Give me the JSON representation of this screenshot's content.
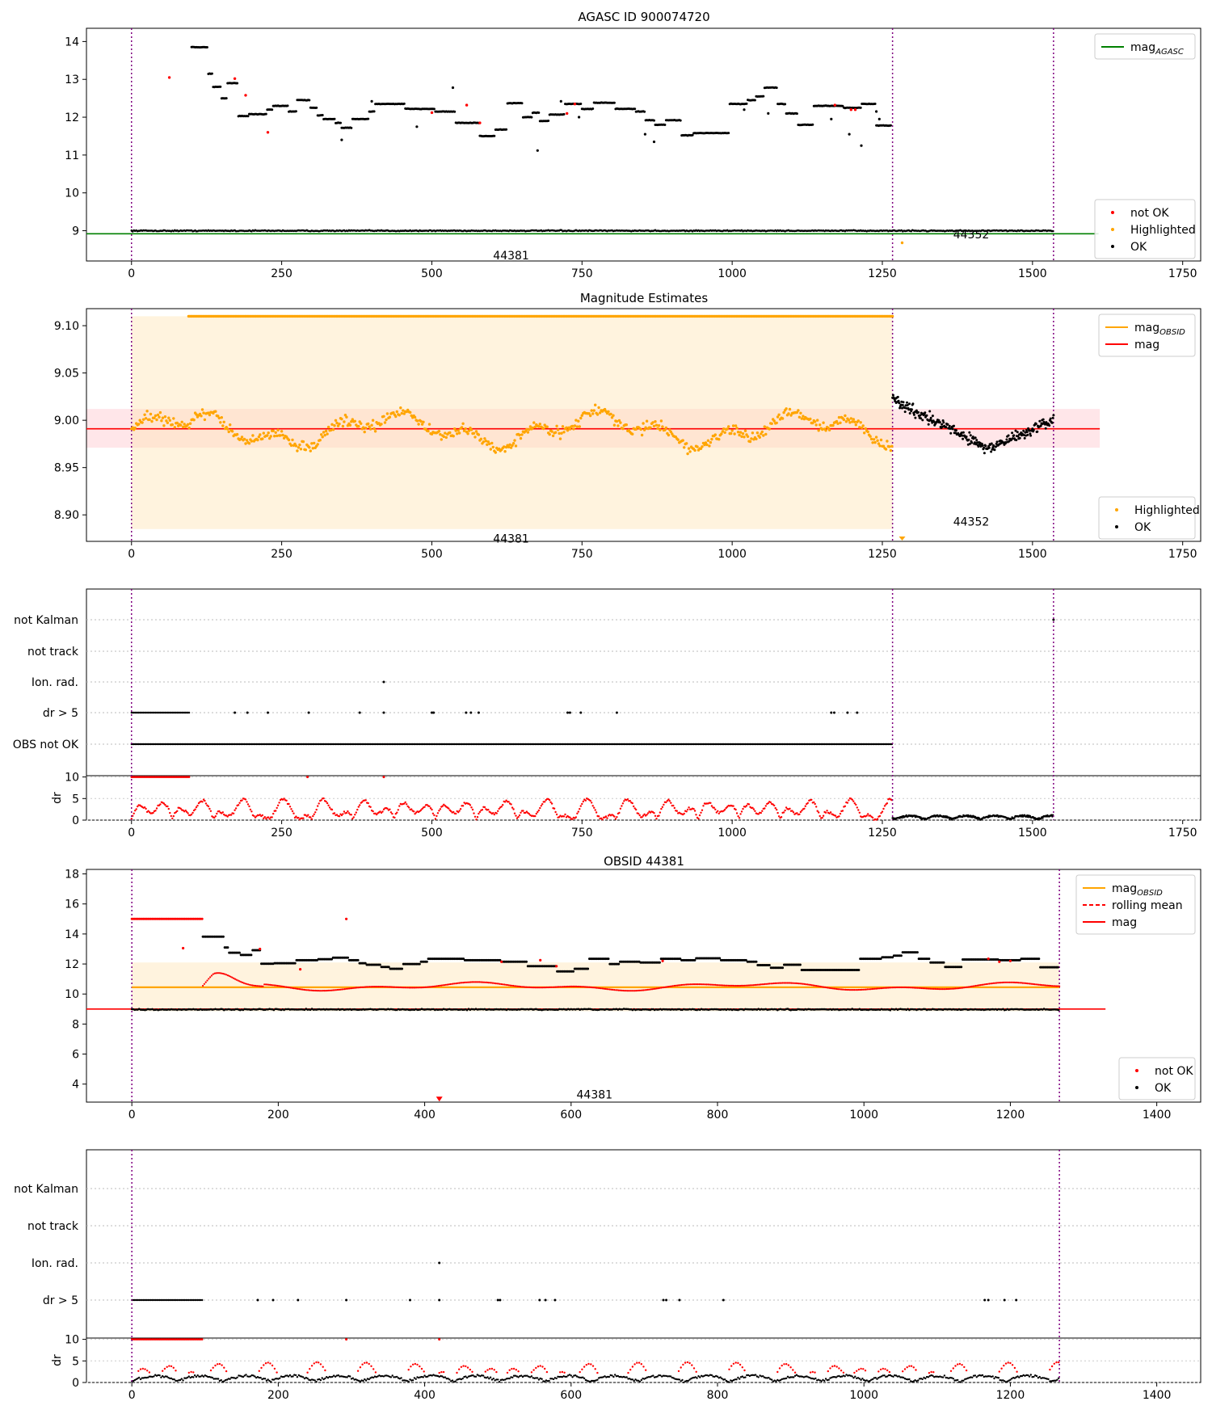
{
  "chart_data": [
    {
      "type": "scatter",
      "title": "AGASC ID 900074720",
      "xlim": [
        -75,
        1780
      ],
      "ylim": [
        8.2,
        14.35
      ],
      "xticks": [
        0,
        250,
        500,
        750,
        1000,
        1250,
        1500,
        1750
      ],
      "yticks": [
        9,
        10,
        11,
        12,
        13,
        14
      ],
      "legend_top": {
        "position": "upper right",
        "entries": [
          {
            "label": "mag",
            "sub": "AGASC",
            "color": "#008000"
          }
        ]
      },
      "legend_bottom": {
        "position": "lower right",
        "entries": [
          {
            "label": "not OK",
            "color": "#ff0000"
          },
          {
            "label": "Highlighted",
            "color": "#ffa500"
          },
          {
            "label": "OK",
            "color": "#000000"
          }
        ]
      },
      "hline": {
        "value": 8.92,
        "color": "#008000",
        "x_range": [
          -75,
          1610
        ]
      },
      "obsid_boundaries": [
        0,
        1267,
        1535
      ],
      "obsid_labels": [
        {
          "text": "44381",
          "x": 632,
          "y": 8.35
        },
        {
          "text": "44352",
          "x": 1398,
          "y": 8.9
        }
      ],
      "series": [
        {
          "name": "OK",
          "kind": "ok",
          "color": "#000000",
          "n_estimated": 1535,
          "baseline": 9.0,
          "noise": 0.02,
          "x_range": [
            0,
            1535
          ]
        },
        {
          "name": "OK",
          "kind": "ok_upper",
          "color": "#000000",
          "x_range": [
            100,
            1265
          ],
          "steps": [
            [
              100,
              13.85
            ],
            [
              127,
              13.15
            ],
            [
              135,
              12.8
            ],
            [
              150,
              12.5
            ],
            [
              160,
              12.9
            ],
            [
              177,
              12.03
            ],
            [
              195,
              12.08
            ],
            [
              225,
              12.2
            ],
            [
              235,
              12.3
            ],
            [
              262,
              12.15
            ],
            [
              275,
              12.45
            ],
            [
              297,
              12.25
            ],
            [
              310,
              12.05
            ],
            [
              320,
              11.95
            ],
            [
              340,
              11.85
            ],
            [
              350,
              11.72
            ],
            [
              368,
              11.95
            ],
            [
              395,
              12.15
            ],
            [
              405,
              12.35
            ],
            [
              455,
              12.22
            ],
            [
              505,
              12.15
            ],
            [
              540,
              11.85
            ],
            [
              580,
              11.5
            ],
            [
              605,
              11.67
            ],
            [
              625,
              12.37
            ],
            [
              652,
              12.0
            ],
            [
              667,
              12.12
            ],
            [
              680,
              11.9
            ],
            [
              695,
              12.07
            ],
            [
              722,
              12.35
            ],
            [
              750,
              12.22
            ],
            [
              770,
              12.38
            ],
            [
              805,
              12.22
            ],
            [
              840,
              12.15
            ],
            [
              855,
              11.92
            ],
            [
              872,
              11.8
            ],
            [
              890,
              11.92
            ],
            [
              915,
              11.52
            ],
            [
              935,
              11.58
            ],
            [
              995,
              12.35
            ],
            [
              1025,
              12.45
            ],
            [
              1040,
              12.55
            ],
            [
              1053,
              12.78
            ],
            [
              1075,
              12.35
            ],
            [
              1090,
              12.1
            ],
            [
              1110,
              11.8
            ],
            [
              1135,
              12.3
            ],
            [
              1185,
              12.25
            ],
            [
              1215,
              12.35
            ],
            [
              1240,
              11.78
            ]
          ]
        },
        {
          "name": "not OK",
          "kind": "notok",
          "color": "#ff0000",
          "x": [
            63,
            172,
            190,
            227,
            500,
            558,
            580,
            725,
            738,
            1171,
            1198,
            1205
          ],
          "y": [
            13.05,
            13.02,
            12.58,
            11.6,
            12.12,
            12.32,
            11.85,
            12.1,
            12.35,
            12.32,
            12.2,
            12.2
          ]
        },
        {
          "name": "Highlighted",
          "kind": "highlight",
          "color": "#ffa500",
          "x": [
            1283
          ],
          "y": [
            8.68
          ]
        }
      ]
    },
    {
      "type": "scatter",
      "title": "Magnitude Estimates",
      "xlim": [
        -75,
        1780
      ],
      "ylim": [
        8.872,
        9.118
      ],
      "xticks": [
        0,
        250,
        500,
        750,
        1000,
        1250,
        1500,
        1750
      ],
      "yticks": [
        8.9,
        8.95,
        9.0,
        9.05,
        9.1
      ],
      "ytick_labels": [
        "8.90",
        "8.95",
        "9.00",
        "9.05",
        "9.10"
      ],
      "legend_top": {
        "position": "upper right",
        "entries": [
          {
            "label": "mag",
            "sub": "OBSID",
            "color": "#ffa500"
          },
          {
            "label": "mag",
            "color": "#ff0000"
          }
        ]
      },
      "legend_bottom": {
        "position": "lower right",
        "entries": [
          {
            "label": "Highlighted",
            "color": "#ffa500"
          },
          {
            "label": "OK",
            "color": "#000000"
          }
        ]
      },
      "hline": {
        "value": 8.991,
        "color": "#ff0000",
        "x_range": [
          -75,
          1612
        ]
      },
      "bands": [
        {
          "y": [
            8.971,
            9.012
          ],
          "x": [
            -75,
            1612
          ],
          "color": "#ffb6c1",
          "opacity": 0.35
        },
        {
          "y": [
            8.885,
            9.11
          ],
          "x": [
            0,
            1267
          ],
          "color": "#ffe4b5",
          "opacity": 0.45
        }
      ],
      "obsid_boundaries": [
        0,
        1267,
        1535
      ],
      "obsid_labels": [
        {
          "text": "44381",
          "x": 632,
          "y": 8.875
        },
        {
          "text": "44352",
          "x": 1398,
          "y": 8.893
        }
      ],
      "series": [
        {
          "name": "Highlighted",
          "kind": "highlight",
          "color": "#ffa500",
          "x_range": [
            0,
            1267
          ],
          "center": 8.99,
          "spread": 0.028
        },
        {
          "name": "OK",
          "kind": "ok",
          "color": "#000000",
          "x_range": [
            1267,
            1535
          ],
          "start": 9.022,
          "mid": 8.97,
          "end": 9.0,
          "spread": 0.018
        },
        {
          "name": "Highlighted",
          "kind": "ceiling",
          "color": "#ffa500",
          "y": 9.11,
          "x_range": [
            95,
            1267
          ]
        }
      ]
    },
    {
      "type": "scatter",
      "title": "",
      "xlim": [
        -75,
        1780
      ],
      "xticks": [
        0,
        250,
        500,
        750,
        1000,
        1250,
        1500,
        1750
      ],
      "flag_labels": [
        "not Kalman",
        "not track",
        "Ion. rad.",
        "dr > 5",
        "OBS not OK"
      ],
      "obsid_boundaries": [
        0,
        1267,
        1535
      ],
      "flags": {
        "not Kalman": [
          1535
        ],
        "not track": [],
        "Ion. rad.": [
          420
        ],
        "dr > 5": {
          "range": [
            0,
            97
          ],
          "points": [
            172,
            193,
            227,
            295,
            380,
            420,
            500,
            503,
            557,
            565,
            578,
            726,
            730,
            748,
            808,
            1165,
            1170,
            1192,
            1208
          ]
        },
        "OBS not OK": {
          "range": [
            0,
            1267
          ]
        }
      },
      "dr": {
        "ylabel": "dr",
        "ylim": [
          0,
          10
        ],
        "yticks": [
          0,
          5,
          10
        ],
        "cap_points": [
          293,
          420
        ],
        "ok_range": [
          1267,
          1535
        ],
        "notok_range": [
          0,
          1267
        ]
      }
    },
    {
      "type": "scatter",
      "title": "OBSID 44381",
      "xlim": [
        -62,
        1460
      ],
      "ylim": [
        2.8,
        18.3
      ],
      "xticks": [
        0,
        200,
        400,
        600,
        800,
        1000,
        1200,
        1400
      ],
      "yticks": [
        4,
        6,
        8,
        10,
        12,
        14,
        16,
        18
      ],
      "legend_top": {
        "position": "upper right",
        "entries": [
          {
            "label": "mag",
            "sub": "OBSID",
            "color": "#ffa500",
            "style": "solid"
          },
          {
            "label": "rolling mean",
            "color": "#ff0000",
            "style": "dashed"
          },
          {
            "label": "mag",
            "color": "#ff0000",
            "style": "solid"
          }
        ]
      },
      "legend_bottom": {
        "position": "lower right",
        "entries": [
          {
            "label": "not OK",
            "color": "#ff0000"
          },
          {
            "label": "OK",
            "color": "#000000"
          }
        ]
      },
      "hline": {
        "value": 9.0,
        "color": "#ff0000",
        "x_range": [
          -62,
          1330
        ]
      },
      "mag_obsid": {
        "value": 10.45,
        "color": "#ffa500",
        "x_range": [
          0,
          1267
        ]
      },
      "bands": [
        {
          "y": [
            8.85,
            12.1
          ],
          "x": [
            0,
            1267
          ],
          "color": "#ffe4b5",
          "opacity": 0.45
        }
      ],
      "obsid_boundaries": [
        0,
        1267
      ],
      "obsid_labels": [
        {
          "text": "44381",
          "x": 632,
          "y": 3.3
        }
      ],
      "series": [
        {
          "name": "not OK",
          "kind": "cap",
          "color": "#ff0000",
          "x_range": [
            0,
            97
          ],
          "y": 15.0
        },
        {
          "name": "OK",
          "kind": "ok_upper",
          "color": "#000000",
          "x_range": [
            97,
            1265
          ],
          "steps": [
            [
              97,
              13.82
            ],
            [
              127,
              13.1
            ],
            [
              133,
              12.75
            ],
            [
              148,
              12.6
            ],
            [
              165,
              12.92
            ],
            [
              177,
              12.02
            ],
            [
              195,
              12.05
            ],
            [
              225,
              12.25
            ],
            [
              255,
              12.32
            ],
            [
              275,
              12.42
            ],
            [
              297,
              12.25
            ],
            [
              310,
              12.05
            ],
            [
              320,
              11.95
            ],
            [
              340,
              11.8
            ],
            [
              352,
              11.68
            ],
            [
              370,
              12.0
            ],
            [
              395,
              12.15
            ],
            [
              405,
              12.35
            ],
            [
              455,
              12.25
            ],
            [
              505,
              12.15
            ],
            [
              540,
              11.85
            ],
            [
              580,
              11.5
            ],
            [
              605,
              11.68
            ],
            [
              625,
              12.35
            ],
            [
              652,
              12.0
            ],
            [
              667,
              12.15
            ],
            [
              695,
              12.1
            ],
            [
              722,
              12.35
            ],
            [
              750,
              12.25
            ],
            [
              770,
              12.38
            ],
            [
              805,
              12.25
            ],
            [
              840,
              12.15
            ],
            [
              855,
              11.92
            ],
            [
              872,
              11.75
            ],
            [
              890,
              11.95
            ],
            [
              915,
              11.6
            ],
            [
              995,
              12.35
            ],
            [
              1025,
              12.45
            ],
            [
              1040,
              12.55
            ],
            [
              1053,
              12.78
            ],
            [
              1075,
              12.35
            ],
            [
              1090,
              12.1
            ],
            [
              1110,
              11.8
            ],
            [
              1135,
              12.3
            ],
            [
              1185,
              12.25
            ],
            [
              1215,
              12.35
            ],
            [
              1240,
              11.78
            ]
          ]
        },
        {
          "name": "OK",
          "kind": "ok",
          "color": "#000000",
          "x_range": [
            0,
            1267
          ],
          "baseline": 8.97,
          "noise": 0.05
        },
        {
          "name": "not OK",
          "kind": "notok",
          "color": "#ff0000",
          "x": [
            70,
            175,
            230,
            293,
            505,
            558,
            580,
            725,
            1170,
            1185,
            1200
          ],
          "y": [
            13.05,
            13.0,
            11.65,
            15.0,
            12.15,
            12.25,
            11.85,
            12.2,
            12.35,
            12.15,
            12.2
          ]
        },
        {
          "name": "rolling mean",
          "kind": "rolling",
          "color": "#ff0000",
          "x_range": [
            97,
            1267
          ]
        },
        {
          "name": "not OK",
          "kind": "marker",
          "color": "#ff0000",
          "x": [
            420
          ],
          "y": [
            2.95
          ]
        }
      ]
    },
    {
      "type": "scatter",
      "title": "",
      "xlim": [
        -62,
        1460
      ],
      "xticks": [
        0,
        200,
        400,
        600,
        800,
        1000,
        1200,
        1400
      ],
      "flag_labels": [
        "not Kalman",
        "not track",
        "Ion. rad.",
        "dr > 5"
      ],
      "obsid_boundaries": [
        0,
        1267
      ],
      "flags": {
        "not Kalman": [],
        "not track": [],
        "Ion. rad.": [
          420
        ],
        "dr > 5": {
          "range": [
            0,
            97
          ],
          "points": [
            172,
            193,
            227,
            293,
            380,
            420,
            500,
            503,
            557,
            565,
            578,
            726,
            730,
            748,
            808,
            1165,
            1170,
            1192,
            1208
          ]
        }
      },
      "dr": {
        "ylabel": "dr",
        "ylim": [
          0,
          10
        ],
        "yticks": [
          0,
          5,
          10
        ],
        "cap_points": [
          293,
          420
        ],
        "ok_range": [
          0,
          1267
        ],
        "notok_range": [
          0,
          1267
        ]
      }
    }
  ]
}
